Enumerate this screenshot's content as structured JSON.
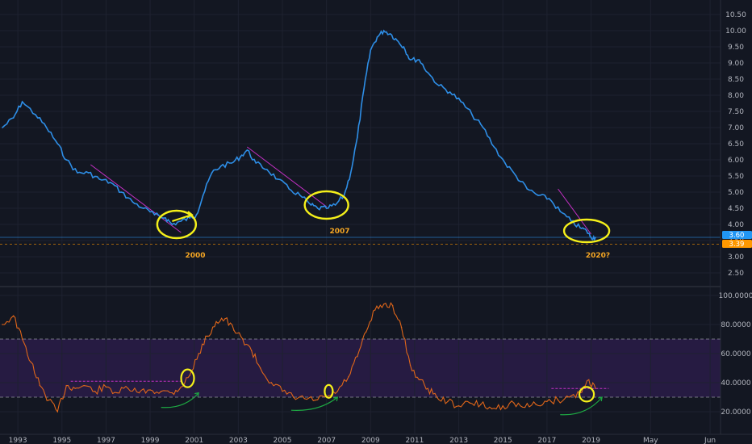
{
  "colors": {
    "background": "#131722",
    "price_line": "#2e8ee6",
    "rsi_line": "#e0661a",
    "rsi_band": "#2a1c48",
    "trend_line": "#c430c4",
    "highlight_circle": "#f5f01a",
    "arrow": "#1ea843",
    "label_orange": "#f5a623",
    "badge_blue": "#2196f3",
    "badge_orange": "#ff9800"
  },
  "annotations": {
    "label_2000": "2000",
    "label_2007": "2007",
    "label_2020": "2020?"
  },
  "badges": {
    "last_value": "3.60",
    "reference_value": "3.39"
  },
  "chart_data": [
    {
      "type": "line",
      "pane": "price",
      "x_unit": "year",
      "ylim": [
        2.2,
        10.6
      ],
      "y_ticks": [
        "2.50",
        "3.00",
        "3.50",
        "4.00",
        "4.50",
        "5.00",
        "5.50",
        "6.00",
        "6.50",
        "7.00",
        "7.50",
        "8.00",
        "8.50",
        "9.00",
        "9.50",
        "10.00",
        "10.50"
      ],
      "reference_lines": [
        3.6,
        3.39
      ],
      "series": [
        {
          "x": [
            1992.3,
            1992.8,
            1993.2,
            1993.8,
            1994.3,
            1994.8,
            1995.2,
            1995.7,
            1996.2,
            1996.7,
            1997.2,
            1997.7,
            1998.2,
            1998.7,
            1999.2,
            1999.7,
            2000.0,
            2000.4,
            2000.8,
            2001.1,
            2001.4,
            2001.8,
            2002.2,
            2002.7,
            2003.1,
            2003.4,
            2003.8,
            2004.3,
            2004.8,
            2005.3,
            2005.8,
            2006.3,
            2006.6,
            2007.0,
            2007.4,
            2007.8,
            2008.1,
            2008.4,
            2008.7,
            2009.0,
            2009.3,
            2009.6,
            2009.9,
            2010.2,
            2010.5,
            2010.8,
            2011.2,
            2011.6,
            2012.1,
            2012.6,
            2013.1,
            2013.6,
            2014.1,
            2014.6,
            2015.1,
            2015.6,
            2016.1,
            2016.6,
            2017.1,
            2017.6,
            2018.1,
            2018.5,
            2018.8,
            2019.0,
            2019.2
          ],
          "y": [
            7.0,
            7.3,
            7.8,
            7.4,
            7.0,
            6.5,
            6.0,
            5.6,
            5.6,
            5.4,
            5.3,
            5.0,
            4.7,
            4.5,
            4.3,
            4.2,
            4.0,
            4.1,
            4.2,
            4.3,
            4.9,
            5.6,
            5.8,
            5.9,
            6.1,
            6.3,
            5.9,
            5.7,
            5.4,
            5.1,
            4.9,
            4.6,
            4.5,
            4.5,
            4.6,
            4.9,
            5.6,
            6.7,
            8.2,
            9.4,
            9.8,
            10.0,
            9.9,
            9.7,
            9.5,
            9.1,
            9.1,
            8.7,
            8.3,
            8.1,
            7.8,
            7.4,
            7.0,
            6.4,
            5.9,
            5.5,
            5.1,
            4.9,
            4.8,
            4.4,
            4.1,
            3.9,
            3.8,
            3.6,
            3.6
          ]
        }
      ]
    },
    {
      "type": "line",
      "pane": "oscillator",
      "x_unit": "year",
      "ylim": [
        10,
        102
      ],
      "y_ticks": [
        "20.0000",
        "40.0000",
        "60.0000",
        "80.0000",
        "100.0000"
      ],
      "band": [
        30,
        70
      ],
      "series": [
        {
          "x": [
            1992.3,
            1992.8,
            1993.2,
            1993.6,
            1994.0,
            1994.4,
            1994.8,
            1995.2,
            1995.6,
            1996.0,
            1996.5,
            1997.0,
            1997.5,
            1998.0,
            1998.5,
            1999.0,
            1999.5,
            2000.0,
            2000.4,
            2000.8,
            2001.2,
            2001.6,
            2002.0,
            2002.4,
            2002.8,
            2003.2,
            2003.6,
            2004.0,
            2004.5,
            2005.0,
            2005.5,
            2006.0,
            2006.5,
            2007.0,
            2007.5,
            2008.0,
            2008.4,
            2008.8,
            2009.2,
            2009.6,
            2010.0,
            2010.4,
            2010.8,
            2011.2,
            2011.6,
            2012.0,
            2012.5,
            2013.0,
            2013.5,
            2014.0,
            2014.5,
            2015.0,
            2015.5,
            2016.0,
            2016.5,
            2017.0,
            2017.5,
            2018.0,
            2018.5,
            2018.9,
            2019.2
          ],
          "y": [
            80,
            86,
            70,
            54,
            38,
            28,
            20,
            38,
            36,
            38,
            34,
            37,
            33,
            36,
            33,
            35,
            34,
            33,
            37,
            45,
            60,
            72,
            82,
            84,
            76,
            70,
            62,
            50,
            40,
            34,
            30,
            29,
            28,
            30,
            34,
            44,
            58,
            75,
            90,
            94,
            93,
            78,
            52,
            42,
            36,
            30,
            27,
            24,
            26,
            25,
            22,
            24,
            26,
            23,
            25,
            27,
            28,
            30,
            33,
            42,
            36
          ]
        }
      ]
    }
  ],
  "time_axis": {
    "labels": [
      {
        "text": "1993",
        "x": 1993.0
      },
      {
        "text": "1995",
        "x": 1995.0
      },
      {
        "text": "1997",
        "x": 1997.0
      },
      {
        "text": "1999",
        "x": 1999.0
      },
      {
        "text": "2001",
        "x": 2001.0
      },
      {
        "text": "2003",
        "x": 2003.0
      },
      {
        "text": "2005",
        "x": 2005.0
      },
      {
        "text": "2007",
        "x": 2007.0
      },
      {
        "text": "2009",
        "x": 2009.0
      },
      {
        "text": "2011",
        "x": 2011.0
      },
      {
        "text": "2013",
        "x": 2013.0
      },
      {
        "text": "2015",
        "x": 2015.0
      },
      {
        "text": "2017",
        "x": 2017.0
      },
      {
        "text": "2019",
        "x": 2019.0
      },
      {
        "text": "May",
        "x": 2021.7
      },
      {
        "text": "Jun",
        "x": 2024.4
      }
    ]
  }
}
